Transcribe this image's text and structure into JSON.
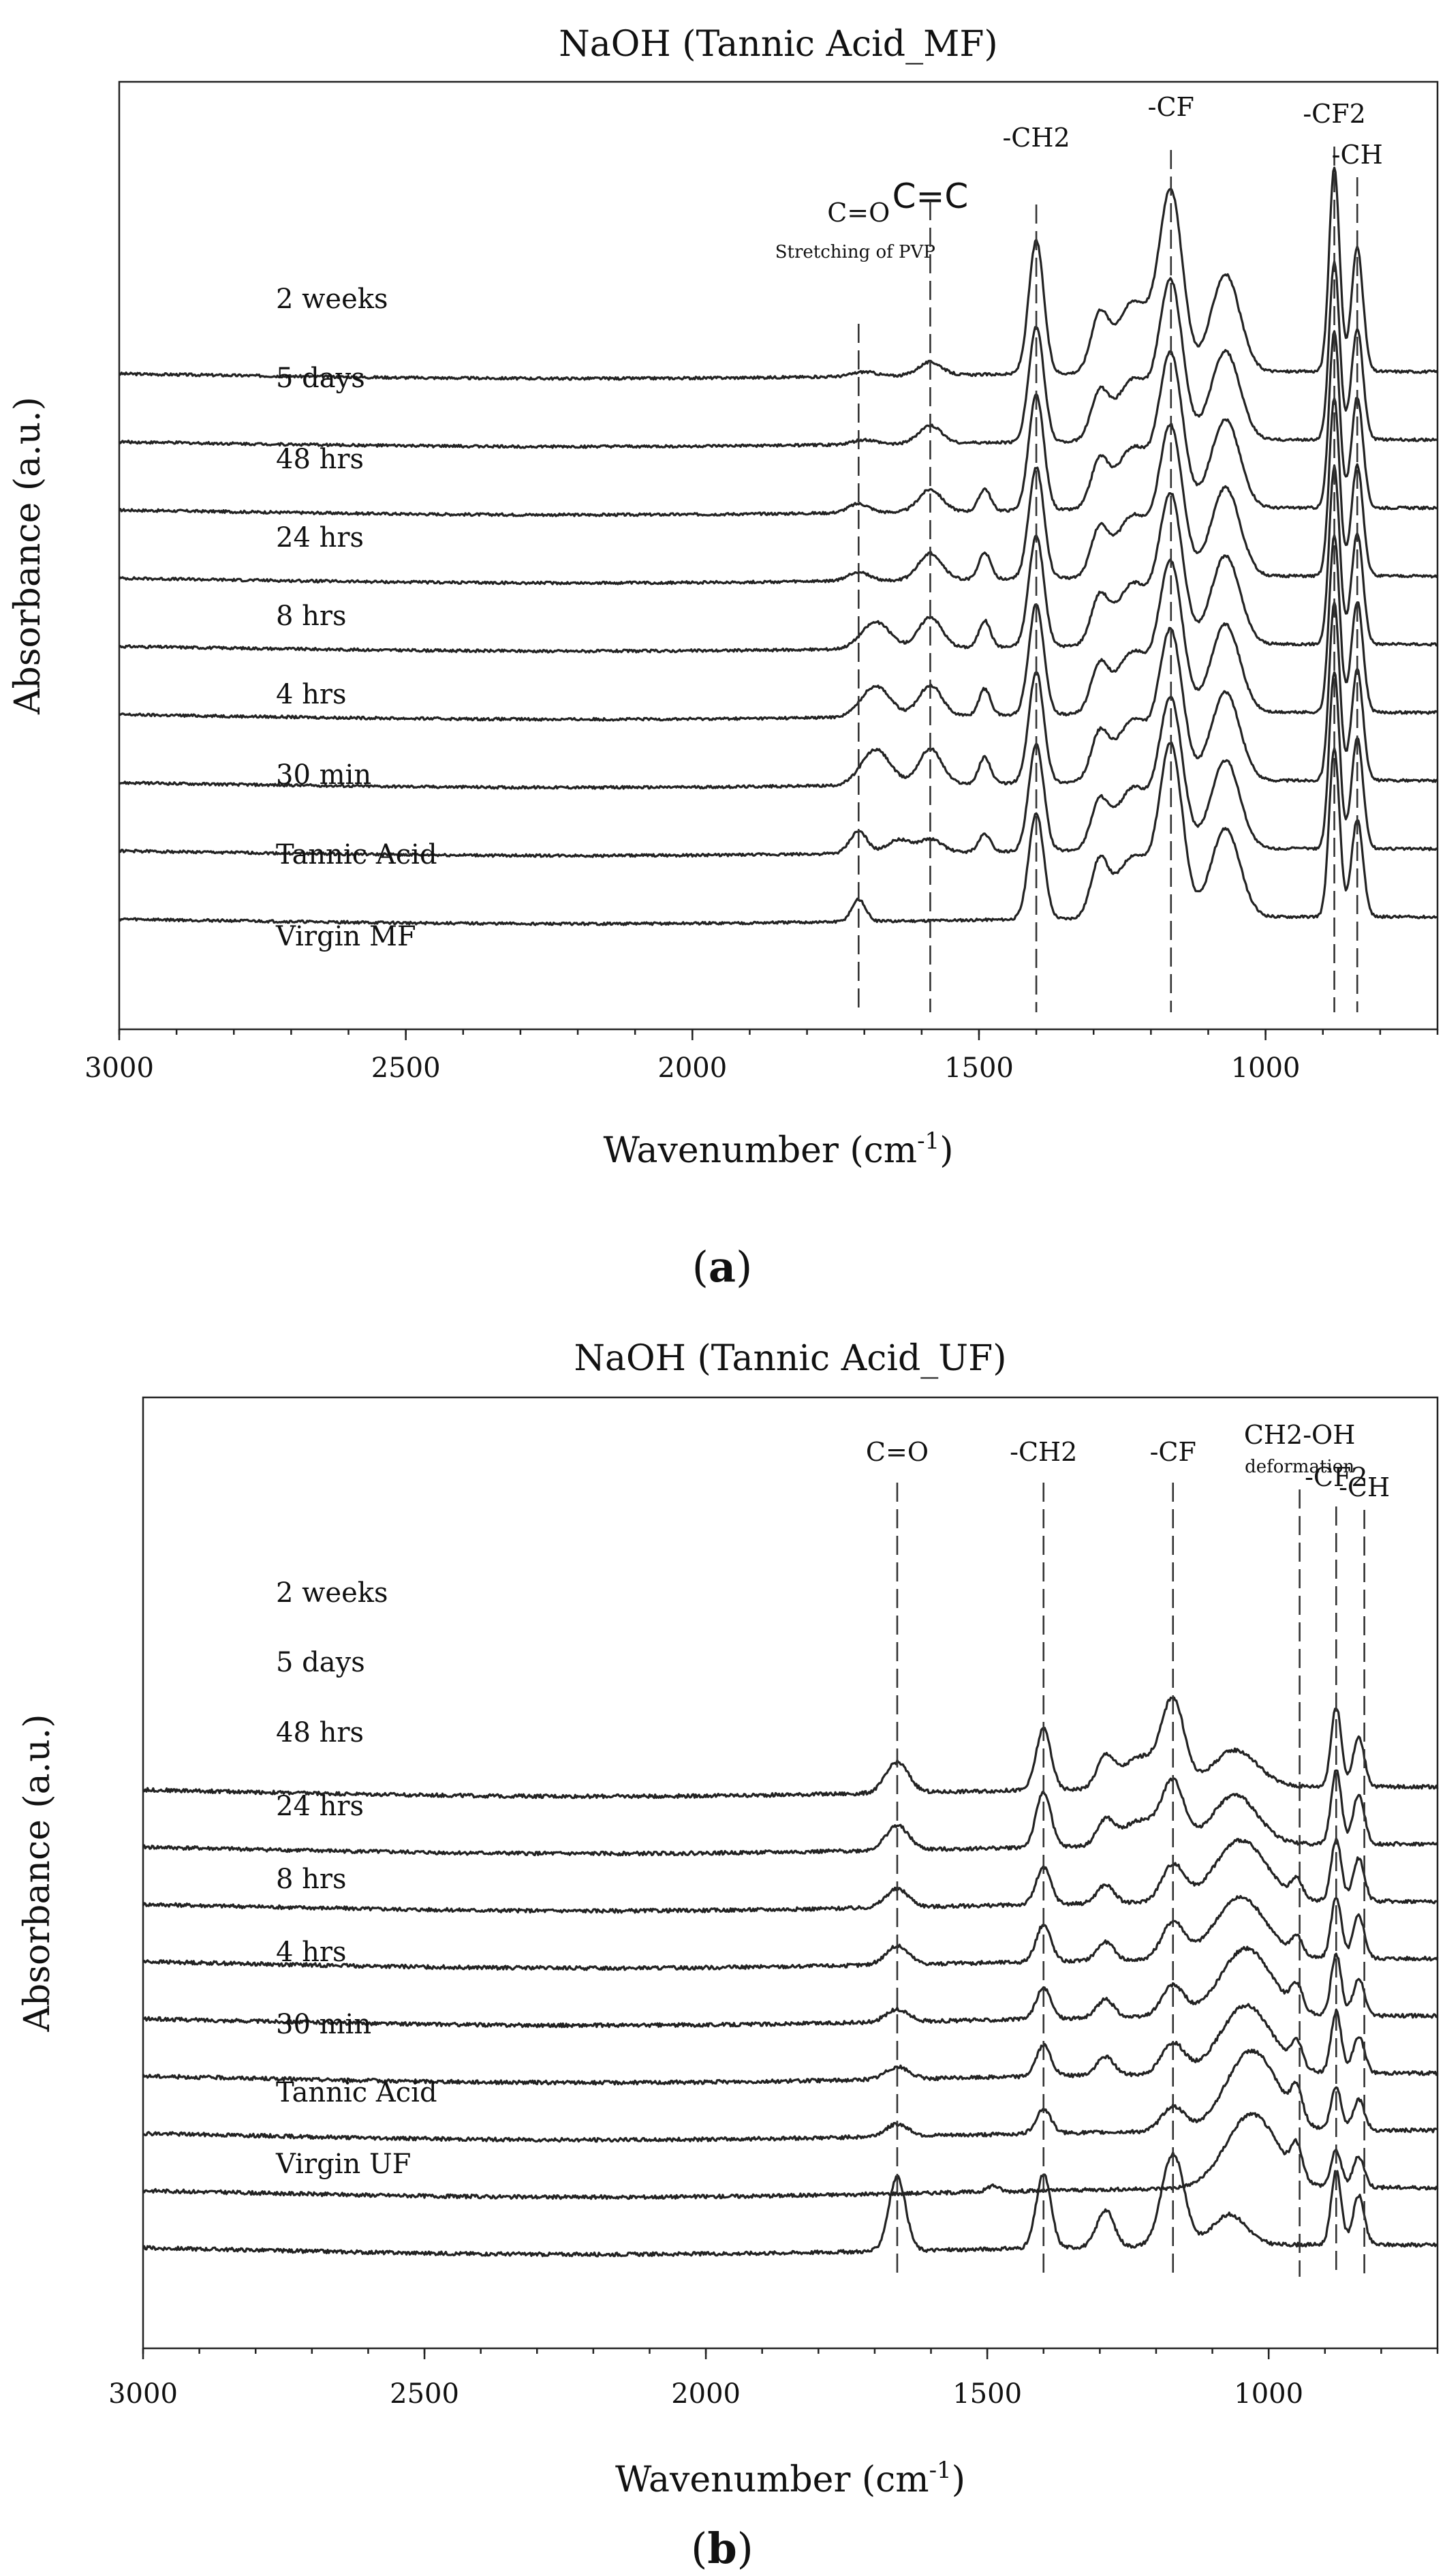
{
  "charts": [
    {
      "type": "line",
      "title": "NaOH (Tannic Acid_MF)",
      "xlabel_main": "Wavenumber (cm",
      "xlabel_sup": "-1",
      "xlabel_close": ")",
      "ylabel": "Absorbance (a.u.)",
      "xlim": [
        3000,
        700
      ],
      "xticks": [
        "3000",
        "2500",
        "2000",
        "1500",
        "1000"
      ],
      "xtick_values": [
        3000,
        2500,
        2000,
        1500,
        1000
      ],
      "panel_label": "a",
      "series": [
        {
          "name": "2 weeks",
          "offset": 0.8,
          "bands": [
            [
              1700,
              0.01,
              20
            ],
            [
              1585,
              0.03,
              20
            ],
            [
              1400,
              0.3,
              13
            ],
            [
              1290,
              0.12,
              15
            ],
            [
              1230,
              0.16,
              30
            ],
            [
              1165,
              0.4,
              20
            ],
            [
              1070,
              0.22,
              25
            ],
            [
              880,
              0.46,
              9
            ],
            [
              840,
              0.28,
              10
            ]
          ]
        },
        {
          "name": "5 days",
          "offset": 0.7,
          "bands": [
            [
              1700,
              0.01,
              20
            ],
            [
              1585,
              0.04,
              20
            ],
            [
              1400,
              0.26,
              13
            ],
            [
              1290,
              0.1,
              15
            ],
            [
              1230,
              0.14,
              30
            ],
            [
              1165,
              0.35,
              20
            ],
            [
              1070,
              0.2,
              25
            ],
            [
              880,
              0.4,
              9
            ],
            [
              840,
              0.25,
              10
            ]
          ]
        },
        {
          "name": "48 hrs",
          "offset": 0.6,
          "bands": [
            [
              1710,
              0.02,
              18
            ],
            [
              1585,
              0.05,
              20
            ],
            [
              1490,
              0.05,
              10
            ],
            [
              1400,
              0.26,
              13
            ],
            [
              1290,
              0.1,
              15
            ],
            [
              1230,
              0.14,
              30
            ],
            [
              1165,
              0.34,
              20
            ],
            [
              1070,
              0.2,
              25
            ],
            [
              880,
              0.4,
              9
            ],
            [
              840,
              0.25,
              10
            ]
          ]
        },
        {
          "name": "24 hrs",
          "offset": 0.5,
          "bands": [
            [
              1710,
              0.02,
              18
            ],
            [
              1585,
              0.06,
              20
            ],
            [
              1490,
              0.06,
              10
            ],
            [
              1400,
              0.25,
              13
            ],
            [
              1290,
              0.1,
              15
            ],
            [
              1230,
              0.14,
              30
            ],
            [
              1165,
              0.33,
              20
            ],
            [
              1070,
              0.2,
              25
            ],
            [
              880,
              0.4,
              9
            ],
            [
              840,
              0.25,
              10
            ]
          ]
        },
        {
          "name": "8 hrs",
          "offset": 0.4,
          "bands": [
            [
              1680,
              0.06,
              25
            ],
            [
              1585,
              0.07,
              20
            ],
            [
              1490,
              0.06,
              10
            ],
            [
              1400,
              0.25,
              13
            ],
            [
              1290,
              0.1,
              15
            ],
            [
              1230,
              0.14,
              30
            ],
            [
              1165,
              0.33,
              20
            ],
            [
              1070,
              0.2,
              25
            ],
            [
              880,
              0.4,
              9
            ],
            [
              840,
              0.25,
              10
            ]
          ]
        },
        {
          "name": "4 hrs",
          "offset": 0.3,
          "bands": [
            [
              1680,
              0.07,
              25
            ],
            [
              1585,
              0.07,
              20
            ],
            [
              1490,
              0.06,
              10
            ],
            [
              1400,
              0.25,
              13
            ],
            [
              1290,
              0.1,
              15
            ],
            [
              1230,
              0.14,
              30
            ],
            [
              1165,
              0.33,
              20
            ],
            [
              1070,
              0.2,
              25
            ],
            [
              880,
              0.4,
              9
            ],
            [
              840,
              0.25,
              10
            ]
          ]
        },
        {
          "name": "30 min",
          "offset": 0.2,
          "bands": [
            [
              1680,
              0.08,
              25
            ],
            [
              1585,
              0.08,
              20
            ],
            [
              1490,
              0.06,
              10
            ],
            [
              1400,
              0.25,
              13
            ],
            [
              1290,
              0.1,
              15
            ],
            [
              1230,
              0.14,
              30
            ],
            [
              1165,
              0.33,
              20
            ],
            [
              1070,
              0.2,
              25
            ],
            [
              880,
              0.4,
              9
            ],
            [
              840,
              0.25,
              10
            ]
          ]
        },
        {
          "name": "Tannic Acid",
          "offset": 0.1,
          "bands": [
            [
              1710,
              0.05,
              15
            ],
            [
              1640,
              0.03,
              20
            ],
            [
              1585,
              0.03,
              20
            ],
            [
              1490,
              0.04,
              10
            ],
            [
              1400,
              0.24,
              13
            ],
            [
              1290,
              0.1,
              15
            ],
            [
              1230,
              0.14,
              30
            ],
            [
              1165,
              0.33,
              20
            ],
            [
              1070,
              0.2,
              25
            ],
            [
              880,
              0.4,
              9
            ],
            [
              840,
              0.25,
              10
            ]
          ]
        },
        {
          "name": "Virgin MF",
          "offset": 0.0,
          "bands": [
            [
              1710,
              0.05,
              12
            ],
            [
              1400,
              0.24,
              13
            ],
            [
              1290,
              0.12,
              15
            ],
            [
              1230,
              0.14,
              30
            ],
            [
              1165,
              0.38,
              20
            ],
            [
              1070,
              0.2,
              25
            ],
            [
              880,
              0.38,
              9
            ],
            [
              840,
              0.22,
              10
            ]
          ]
        }
      ],
      "annotations": [
        {
          "text": "C=O",
          "x": 1710,
          "style": "annot",
          "sub": "Stretching of PVP"
        },
        {
          "text": "C=C",
          "x": 1585,
          "style": "annot-bold"
        },
        {
          "text": "-CH2",
          "x": 1400,
          "style": "annot"
        },
        {
          "text": "-CF",
          "x": 1165,
          "style": "annot"
        },
        {
          "text": "-CF2",
          "x": 880,
          "style": "annot-s"
        },
        {
          "text": "-CH",
          "x": 840,
          "style": "annot-s"
        }
      ]
    },
    {
      "type": "line",
      "title": "NaOH (Tannic Acid_UF)",
      "xlabel_main": "Wavenumber (cm",
      "xlabel_sup": "-1",
      "xlabel_close": ")",
      "ylabel": "Absorbance (a.u.)",
      "xlim": [
        3000,
        700
      ],
      "xticks": [
        "3000",
        "2500",
        "2000",
        "1500",
        "1000"
      ],
      "xtick_values": [
        3000,
        2500,
        2000,
        1500,
        1000
      ],
      "panel_label": "b",
      "series": [
        {
          "name": "2 weeks",
          "offset": 0.8,
          "bands": [
            [
              1660,
              0.05,
              20
            ],
            [
              1400,
              0.1,
              13
            ],
            [
              1290,
              0.05,
              15
            ],
            [
              1230,
              0.05,
              30
            ],
            [
              1170,
              0.14,
              20
            ],
            [
              1060,
              0.06,
              40
            ],
            [
              880,
              0.13,
              9
            ],
            [
              840,
              0.08,
              10
            ]
          ]
        },
        {
          "name": "5 days",
          "offset": 0.7,
          "bands": [
            [
              1660,
              0.04,
              20
            ],
            [
              1400,
              0.09,
              13
            ],
            [
              1290,
              0.04,
              15
            ],
            [
              1230,
              0.04,
              30
            ],
            [
              1170,
              0.1,
              20
            ],
            [
              1060,
              0.08,
              40
            ],
            [
              880,
              0.12,
              9
            ],
            [
              840,
              0.08,
              10
            ]
          ]
        },
        {
          "name": "48 hrs",
          "offset": 0.6,
          "bands": [
            [
              1660,
              0.03,
              20
            ],
            [
              1400,
              0.06,
              13
            ],
            [
              1290,
              0.03,
              15
            ],
            [
              1170,
              0.06,
              20
            ],
            [
              1050,
              0.1,
              45
            ],
            [
              950,
              0.03,
              10
            ],
            [
              880,
              0.1,
              9
            ],
            [
              840,
              0.07,
              10
            ]
          ]
        },
        {
          "name": "24 hrs",
          "offset": 0.5,
          "bands": [
            [
              1660,
              0.03,
              20
            ],
            [
              1400,
              0.06,
              13
            ],
            [
              1290,
              0.03,
              15
            ],
            [
              1170,
              0.06,
              20
            ],
            [
              1050,
              0.1,
              45
            ],
            [
              950,
              0.03,
              10
            ],
            [
              880,
              0.1,
              9
            ],
            [
              840,
              0.07,
              10
            ]
          ]
        },
        {
          "name": "8 hrs",
          "offset": 0.4,
          "bands": [
            [
              1660,
              0.02,
              20
            ],
            [
              1400,
              0.05,
              13
            ],
            [
              1290,
              0.03,
              15
            ],
            [
              1170,
              0.05,
              20
            ],
            [
              1040,
              0.11,
              45
            ],
            [
              950,
              0.04,
              10
            ],
            [
              880,
              0.1,
              9
            ],
            [
              840,
              0.06,
              10
            ]
          ]
        },
        {
          "name": "4 hrs",
          "offset": 0.3,
          "bands": [
            [
              1660,
              0.02,
              20
            ],
            [
              1400,
              0.05,
              13
            ],
            [
              1290,
              0.03,
              15
            ],
            [
              1170,
              0.05,
              20
            ],
            [
              1040,
              0.11,
              45
            ],
            [
              950,
              0.04,
              10
            ],
            [
              880,
              0.1,
              9
            ],
            [
              840,
              0.06,
              10
            ]
          ]
        },
        {
          "name": "30 min",
          "offset": 0.2,
          "bands": [
            [
              1660,
              0.02,
              20
            ],
            [
              1400,
              0.04,
              13
            ],
            [
              1170,
              0.04,
              20
            ],
            [
              1030,
              0.13,
              45
            ],
            [
              950,
              0.05,
              10
            ],
            [
              880,
              0.07,
              9
            ],
            [
              840,
              0.05,
              10
            ]
          ]
        },
        {
          "name": "Tannic Acid",
          "offset": 0.1,
          "bands": [
            [
              1490,
              0.01,
              10
            ],
            [
              1030,
              0.12,
              45
            ],
            [
              950,
              0.05,
              10
            ],
            [
              880,
              0.06,
              9
            ],
            [
              840,
              0.05,
              10
            ]
          ]
        },
        {
          "name": "Virgin UF",
          "offset": 0.0,
          "bands": [
            [
              1660,
              0.12,
              15
            ],
            [
              1400,
              0.12,
              13
            ],
            [
              1290,
              0.06,
              15
            ],
            [
              1170,
              0.15,
              20
            ],
            [
              1070,
              0.05,
              30
            ],
            [
              880,
              0.12,
              9
            ],
            [
              840,
              0.08,
              10
            ]
          ]
        }
      ],
      "annotations": [
        {
          "text": "C=O",
          "x": 1660,
          "style": "annot"
        },
        {
          "text": "-CH2",
          "x": 1400,
          "style": "annot"
        },
        {
          "text": "-CF",
          "x": 1170,
          "style": "annot"
        },
        {
          "text": "CH2-OH",
          "x": 945,
          "style": "annot-s",
          "sub": "deformation"
        },
        {
          "text": "-CF2",
          "x": 880,
          "style": "annot-s"
        },
        {
          "text": "-CH",
          "x": 830,
          "style": "annot-s"
        }
      ]
    }
  ]
}
